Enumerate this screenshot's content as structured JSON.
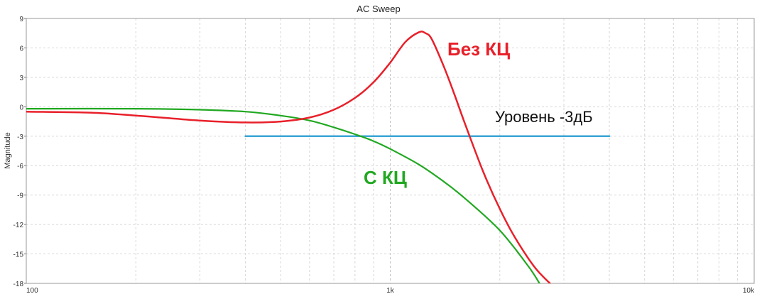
{
  "chart_data": {
    "type": "line",
    "title": "AC Sweep",
    "xlabel": "",
    "ylabel": "Magnitude",
    "xscale": "log",
    "xlim": [
      100,
      10000
    ],
    "ylim": [
      -18,
      9
    ],
    "x_ticks": [
      {
        "value": 100,
        "label": "100"
      },
      {
        "value": 1000,
        "label": "1k"
      },
      {
        "value": 10000,
        "label": "10k"
      }
    ],
    "y_ticks": [
      {
        "value": 9,
        "label": "9"
      },
      {
        "value": 6,
        "label": "6"
      },
      {
        "value": 3,
        "label": "3"
      },
      {
        "value": 0,
        "label": "0"
      },
      {
        "value": -3,
        "label": "-3"
      },
      {
        "value": -6,
        "label": "-6"
      },
      {
        "value": -9,
        "label": "-9"
      },
      {
        "value": -12,
        "label": "-12"
      },
      {
        "value": -15,
        "label": "-15"
      },
      {
        "value": -18,
        "label": "-18"
      }
    ],
    "grid": true,
    "series": [
      {
        "name": "Без КЦ",
        "color": "#e8202a",
        "x": [
          100,
          150,
          200,
          300,
          400,
          500,
          600,
          700,
          800,
          900,
          1000,
          1100,
          1200,
          1250,
          1300,
          1400,
          1500,
          1600,
          1800,
          2000,
          2200,
          2500,
          2800
        ],
        "y": [
          -0.5,
          -0.6,
          -0.9,
          -1.4,
          -1.6,
          -1.5,
          -1.1,
          -0.3,
          0.9,
          2.5,
          4.5,
          6.6,
          7.6,
          7.5,
          6.9,
          4.2,
          1.3,
          -1.6,
          -6.6,
          -10.4,
          -13.3,
          -16.4,
          -18.3
        ]
      },
      {
        "name": "С КЦ",
        "color": "#21a821",
        "x": [
          100,
          200,
          300,
          400,
          500,
          600,
          700,
          800,
          900,
          1000,
          1200,
          1400,
          1600,
          2000,
          2400,
          2600
        ],
        "y": [
          -0.2,
          -0.2,
          -0.3,
          -0.5,
          -0.9,
          -1.4,
          -2.1,
          -2.8,
          -3.5,
          -4.3,
          -5.9,
          -7.6,
          -9.3,
          -12.6,
          -16.3,
          -18.3
        ]
      },
      {
        "name": "Уровень -3дБ",
        "color": "#3aa6d6",
        "x": [
          400,
          4000
        ],
        "y": [
          -3,
          -3
        ]
      }
    ],
    "annotations": [
      {
        "text": "Без КЦ",
        "color": "#e8202a"
      },
      {
        "text": "Уровень -3дБ",
        "color": "#111111"
      },
      {
        "text": "С КЦ",
        "color": "#21a821"
      }
    ]
  }
}
